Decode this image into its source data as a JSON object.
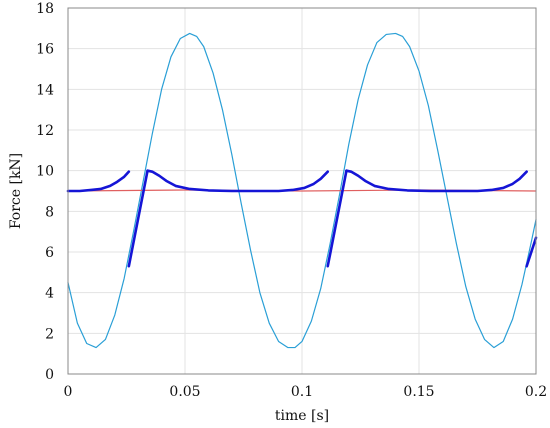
{
  "chart_data": {
    "type": "line",
    "xlabel": "time [s]",
    "ylabel": "Force [kN]",
    "xlim": [
      0,
      0.2
    ],
    "ylim": [
      0,
      18
    ],
    "xticks": [
      0,
      0.05,
      0.1,
      0.15,
      0.2
    ],
    "xtick_labels": [
      "0",
      "0.05",
      "0.1",
      "0.15",
      "0.2"
    ],
    "yticks": [
      0,
      2,
      4,
      6,
      8,
      10,
      12,
      14,
      16,
      18
    ],
    "ytick_labels": [
      "0",
      "2",
      "4",
      "6",
      "8",
      "10",
      "12",
      "14",
      "16",
      "18"
    ],
    "grid": true,
    "legend": "none",
    "series": [
      {
        "color": "#2a9fd6",
        "x": [
          0,
          0.004,
          0.008,
          0.012,
          0.016,
          0.02,
          0.024,
          0.028,
          0.032,
          0.036,
          0.04,
          0.044,
          0.048,
          0.052,
          0.055,
          0.058,
          0.062,
          0.066,
          0.07,
          0.074,
          0.078,
          0.082,
          0.086,
          0.09,
          0.094,
          0.097,
          0.1,
          0.104,
          0.108,
          0.112,
          0.116,
          0.12,
          0.124,
          0.128,
          0.132,
          0.136,
          0.14,
          0.143,
          0.146,
          0.15,
          0.154,
          0.158,
          0.162,
          0.166,
          0.17,
          0.174,
          0.178,
          0.182,
          0.186,
          0.19,
          0.194,
          0.198,
          0.2
        ],
        "y": [
          4.5,
          2.5,
          1.5,
          1.3,
          1.7,
          2.9,
          4.7,
          7.0,
          9.4,
          11.8,
          14.0,
          15.6,
          16.5,
          16.75,
          16.6,
          16.1,
          14.8,
          13.0,
          10.8,
          8.4,
          6.1,
          4.0,
          2.5,
          1.6,
          1.3,
          1.3,
          1.6,
          2.6,
          4.2,
          6.4,
          8.8,
          11.3,
          13.5,
          15.2,
          16.3,
          16.7,
          16.75,
          16.6,
          16.1,
          14.9,
          13.2,
          11.0,
          8.7,
          6.4,
          4.3,
          2.7,
          1.7,
          1.3,
          1.6,
          2.7,
          4.4,
          6.5,
          7.6
        ]
      },
      {
        "color": "#e06060",
        "x": [
          0,
          0.05,
          0.1,
          0.15,
          0.2
        ],
        "y": [
          9.0,
          9.05,
          9.0,
          9.05,
          9.0
        ]
      },
      {
        "color": "#1515d6",
        "segments": [
          {
            "x": [
              0,
              0.005,
              0.01,
              0.014,
              0.018,
              0.021,
              0.024,
              0.026
            ],
            "y": [
              9.0,
              9.0,
              9.05,
              9.1,
              9.25,
              9.45,
              9.7,
              9.95
            ]
          },
          {
            "x": [
              0.026,
              0.034
            ],
            "y": [
              5.3,
              10.0
            ]
          },
          {
            "x": [
              0.034,
              0.036,
              0.039,
              0.042,
              0.046,
              0.052,
              0.06,
              0.07,
              0.08,
              0.09,
              0.096,
              0.101,
              0.105,
              0.108,
              0.111
            ],
            "y": [
              10.0,
              9.95,
              9.75,
              9.5,
              9.25,
              9.1,
              9.03,
              9.0,
              9.0,
              9.0,
              9.05,
              9.15,
              9.35,
              9.6,
              9.95
            ]
          },
          {
            "x": [
              0.111,
              0.119
            ],
            "y": [
              5.3,
              10.0
            ]
          },
          {
            "x": [
              0.119,
              0.121,
              0.124,
              0.127,
              0.131,
              0.137,
              0.145,
              0.155,
              0.165,
              0.175,
              0.181,
              0.186,
              0.19,
              0.193,
              0.196
            ],
            "y": [
              10.0,
              9.95,
              9.75,
              9.5,
              9.25,
              9.1,
              9.03,
              9.0,
              9.0,
              9.0,
              9.05,
              9.15,
              9.35,
              9.6,
              9.95
            ]
          },
          {
            "x": [
              0.196,
              0.2
            ],
            "y": [
              5.3,
              6.7
            ]
          }
        ]
      }
    ]
  }
}
